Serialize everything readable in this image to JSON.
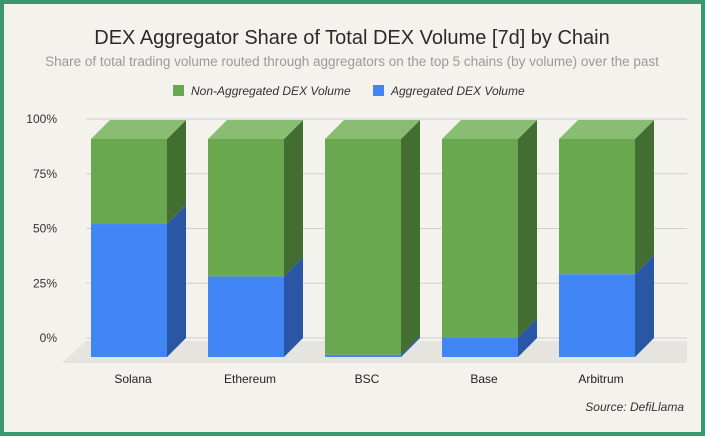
{
  "chart_data": {
    "type": "bar",
    "stacked": true,
    "percent": true,
    "title": "DEX Aggregator Share of Total DEX Volume [7d] by Chain",
    "subtitle": "Share of total trading volume routed through aggregators on the top 5 chains (by volume) over the past",
    "categories": [
      "Solana",
      "Ethereum",
      "BSC",
      "Base",
      "Arbitrum"
    ],
    "series": [
      {
        "name": "Aggregated DEX Volume",
        "color": "#4285f4",
        "side_color": "#2a56a6",
        "values": [
          61,
          37,
          1,
          9,
          38
        ]
      },
      {
        "name": "Non-Aggregated DEX Volume",
        "color": "#6aa84f",
        "side_color": "#436e31",
        "top_color": "#89bd72",
        "values": [
          39,
          63,
          99,
          91,
          62
        ]
      }
    ],
    "legend_order": [
      "Non-Aggregated DEX Volume",
      "Aggregated DEX Volume"
    ],
    "y_ticks": [
      "0%",
      "25%",
      "50%",
      "75%",
      "100%"
    ],
    "ylim": [
      0,
      100
    ],
    "source": "Source: DefiLlama"
  }
}
